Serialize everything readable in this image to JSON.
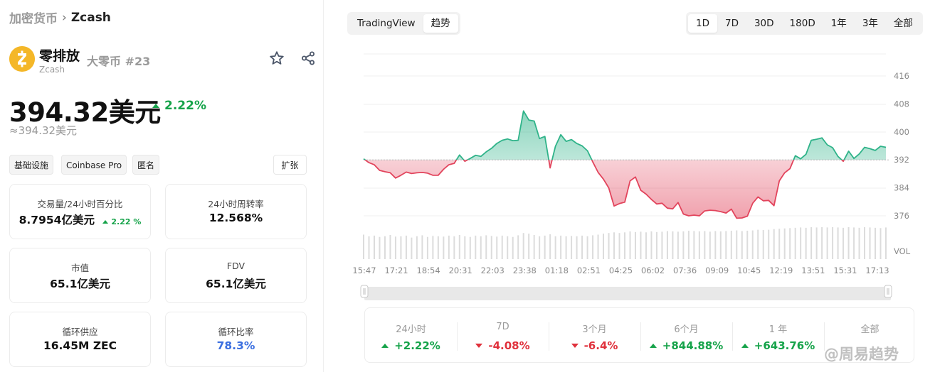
{
  "breadcrumb": {
    "parent": "加密货币",
    "current": "Zcash"
  },
  "coin": {
    "name": "零排放",
    "symbol": "Zcash",
    "rank": "大零币 #23",
    "logo_color": "#f4b728"
  },
  "price": {
    "value": "394.32美元",
    "change": "2.22%",
    "approx": "≈394.32美元"
  },
  "tags": [
    "基础设施",
    "Coinbase Pro",
    "匿名"
  ],
  "expand_label": "扩张",
  "stats_cards": [
    {
      "label": "交易量/24小时百分比",
      "value": "8.7954亿美元",
      "change": "2.22 %"
    },
    {
      "label": "24小时周转率",
      "value": "12.568%"
    },
    {
      "label": "市值",
      "value": "65.1亿美元"
    },
    {
      "label": "FDV",
      "value": "65.1亿美元"
    },
    {
      "label": "循环供应",
      "value": "16.45M ZEC"
    },
    {
      "label": "循环比率",
      "value": "78.3%"
    }
  ],
  "chart_tabs": [
    {
      "label": "TradingView",
      "active": false
    },
    {
      "label": "趋势",
      "active": true
    }
  ],
  "range_tabs": [
    {
      "label": "1D",
      "active": true
    },
    {
      "label": "7D",
      "active": false
    },
    {
      "label": "30D",
      "active": false
    },
    {
      "label": "180D",
      "active": false
    },
    {
      "label": "1年",
      "active": false
    },
    {
      "label": "3年",
      "active": false
    },
    {
      "label": "全部",
      "active": false
    }
  ],
  "performance": [
    {
      "label": "24小时",
      "value": "+2.22%",
      "dir": "up"
    },
    {
      "label": "7D",
      "value": "-4.08%",
      "dir": "down"
    },
    {
      "label": "3个月",
      "value": "-6.4%",
      "dir": "down"
    },
    {
      "label": "6个月",
      "value": "+844.88%",
      "dir": "up"
    },
    {
      "label": "1 年",
      "value": "+643.76%",
      "dir": "up"
    },
    {
      "label": "全部",
      "value": "",
      "dir": ""
    }
  ],
  "watermark": "@周易趋势",
  "colors": {
    "up": "#16a34a",
    "down": "#e0313c",
    "line_up": "#2fb389",
    "line_down": "#e2445c",
    "accent_blue": "#3b6fe0"
  },
  "chart_data": {
    "type": "area",
    "baseline": 392,
    "ylim": [
      372,
      420
    ],
    "y_ticks": [
      416,
      408,
      400,
      392,
      384,
      376
    ],
    "x_ticks": [
      "15:47",
      "17:21",
      "18:54",
      "20:31",
      "22:03",
      "23:38",
      "01:18",
      "02:51",
      "04:25",
      "06:02",
      "07:36",
      "09:09",
      "10:45",
      "12:19",
      "13:51",
      "15:31",
      "17:13"
    ],
    "volume_label": "VOL",
    "prices": [
      392.3,
      391.2,
      390.6,
      389.0,
      388.6,
      388.3,
      386.8,
      387.6,
      388.5,
      388.1,
      388.3,
      388.4,
      388.2,
      387.6,
      387.6,
      389.3,
      390.6,
      391.0,
      393.4,
      391.6,
      392.4,
      393.3,
      393.0,
      394.3,
      395.3,
      396.7,
      397.6,
      398.0,
      397.5,
      397.6,
      406.0,
      403.4,
      403.1,
      398.1,
      398.7,
      389.7,
      395.9,
      399.2,
      397.3,
      397.8,
      396.7,
      396.0,
      394.6,
      391.4,
      388.4,
      386.5,
      384.0,
      378.8,
      379.5,
      379.9,
      386.0,
      387.1,
      383.3,
      382.2,
      380.7,
      379.4,
      379.6,
      378.2,
      378.0,
      379.8,
      376.5,
      376.0,
      376.2,
      376.0,
      377.4,
      377.6,
      377.5,
      377.2,
      376.8,
      377.9,
      375.3,
      375.4,
      375.9,
      379.6,
      381.4,
      380.3,
      380.4,
      378.9,
      386.0,
      388.3,
      389.5,
      393.2,
      392.3,
      393.6,
      397.6,
      397.9,
      398.3,
      396.3,
      395.5,
      393.0,
      391.6,
      394.5,
      392.4,
      393.7,
      395.6,
      395.2,
      394.7,
      395.9,
      395.6
    ],
    "volume": [
      0.75,
      0.7,
      0.72,
      0.68,
      0.7,
      0.74,
      0.69,
      0.7,
      0.72,
      0.66,
      0.7,
      0.73,
      0.68,
      0.71,
      0.7,
      0.69,
      0.72,
      0.7,
      0.74,
      0.7,
      0.68,
      0.72,
      0.7,
      0.73,
      0.71,
      0.69,
      0.72,
      0.7,
      0.68,
      0.73,
      0.8,
      0.78,
      0.74,
      0.7,
      0.72,
      0.76,
      0.7,
      0.72,
      0.7,
      0.71,
      0.7,
      0.72,
      0.7,
      0.73,
      0.75,
      0.78,
      0.8,
      0.82,
      0.8,
      0.82,
      0.85,
      0.83,
      0.84,
      0.82,
      0.85,
      0.83,
      0.84,
      0.86,
      0.85,
      0.84,
      0.85,
      0.87,
      0.86,
      0.85,
      0.86,
      0.84,
      0.86,
      0.85,
      0.86,
      0.87,
      0.88,
      0.86,
      0.87,
      0.88,
      0.9,
      0.89,
      0.9,
      0.92,
      0.93,
      0.94,
      0.95,
      0.96,
      0.97,
      0.96,
      0.98,
      0.97,
      0.98,
      0.97,
      0.98,
      0.97,
      0.96,
      0.98,
      0.97,
      0.96,
      0.98,
      0.97,
      0.96,
      0.95,
      0.97
    ]
  }
}
